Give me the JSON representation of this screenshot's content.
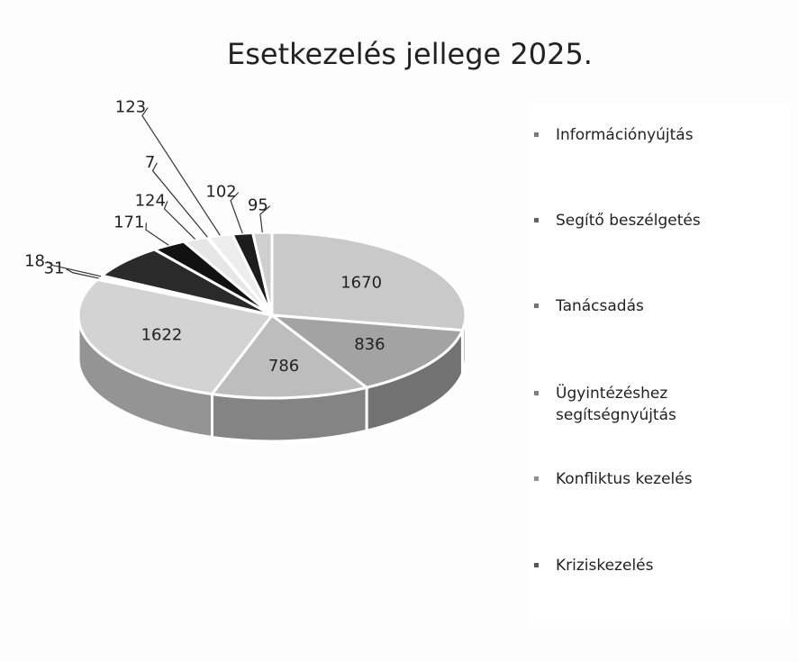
{
  "chart_data": {
    "type": "pie",
    "title": "Esetkezelés jellege 2025.",
    "categories": [
      "Információnyújtás",
      "Segítő beszélgetés",
      "Tanácsadás",
      "Ügyintézéshez segítségnyújtás",
      "Konfliktus kezelés",
      "Kriziskezelés",
      null,
      null,
      null,
      null,
      null,
      null,
      null
    ],
    "values": [
      1670,
      836,
      786,
      1622,
      31,
      18,
      400,
      171,
      124,
      7,
      123,
      102,
      95
    ],
    "colors": [
      "#c9c9c9",
      "#a3a3a3",
      "#bdbdbd",
      "#d3d3d3",
      "#f2f2f2",
      "#8f8f8f",
      "#2a2a2a",
      "#111111",
      "#e6e6e6",
      "#777777",
      "#ededed",
      "#1c1c1c",
      "#cfcfcf"
    ],
    "legend": "right"
  }
}
